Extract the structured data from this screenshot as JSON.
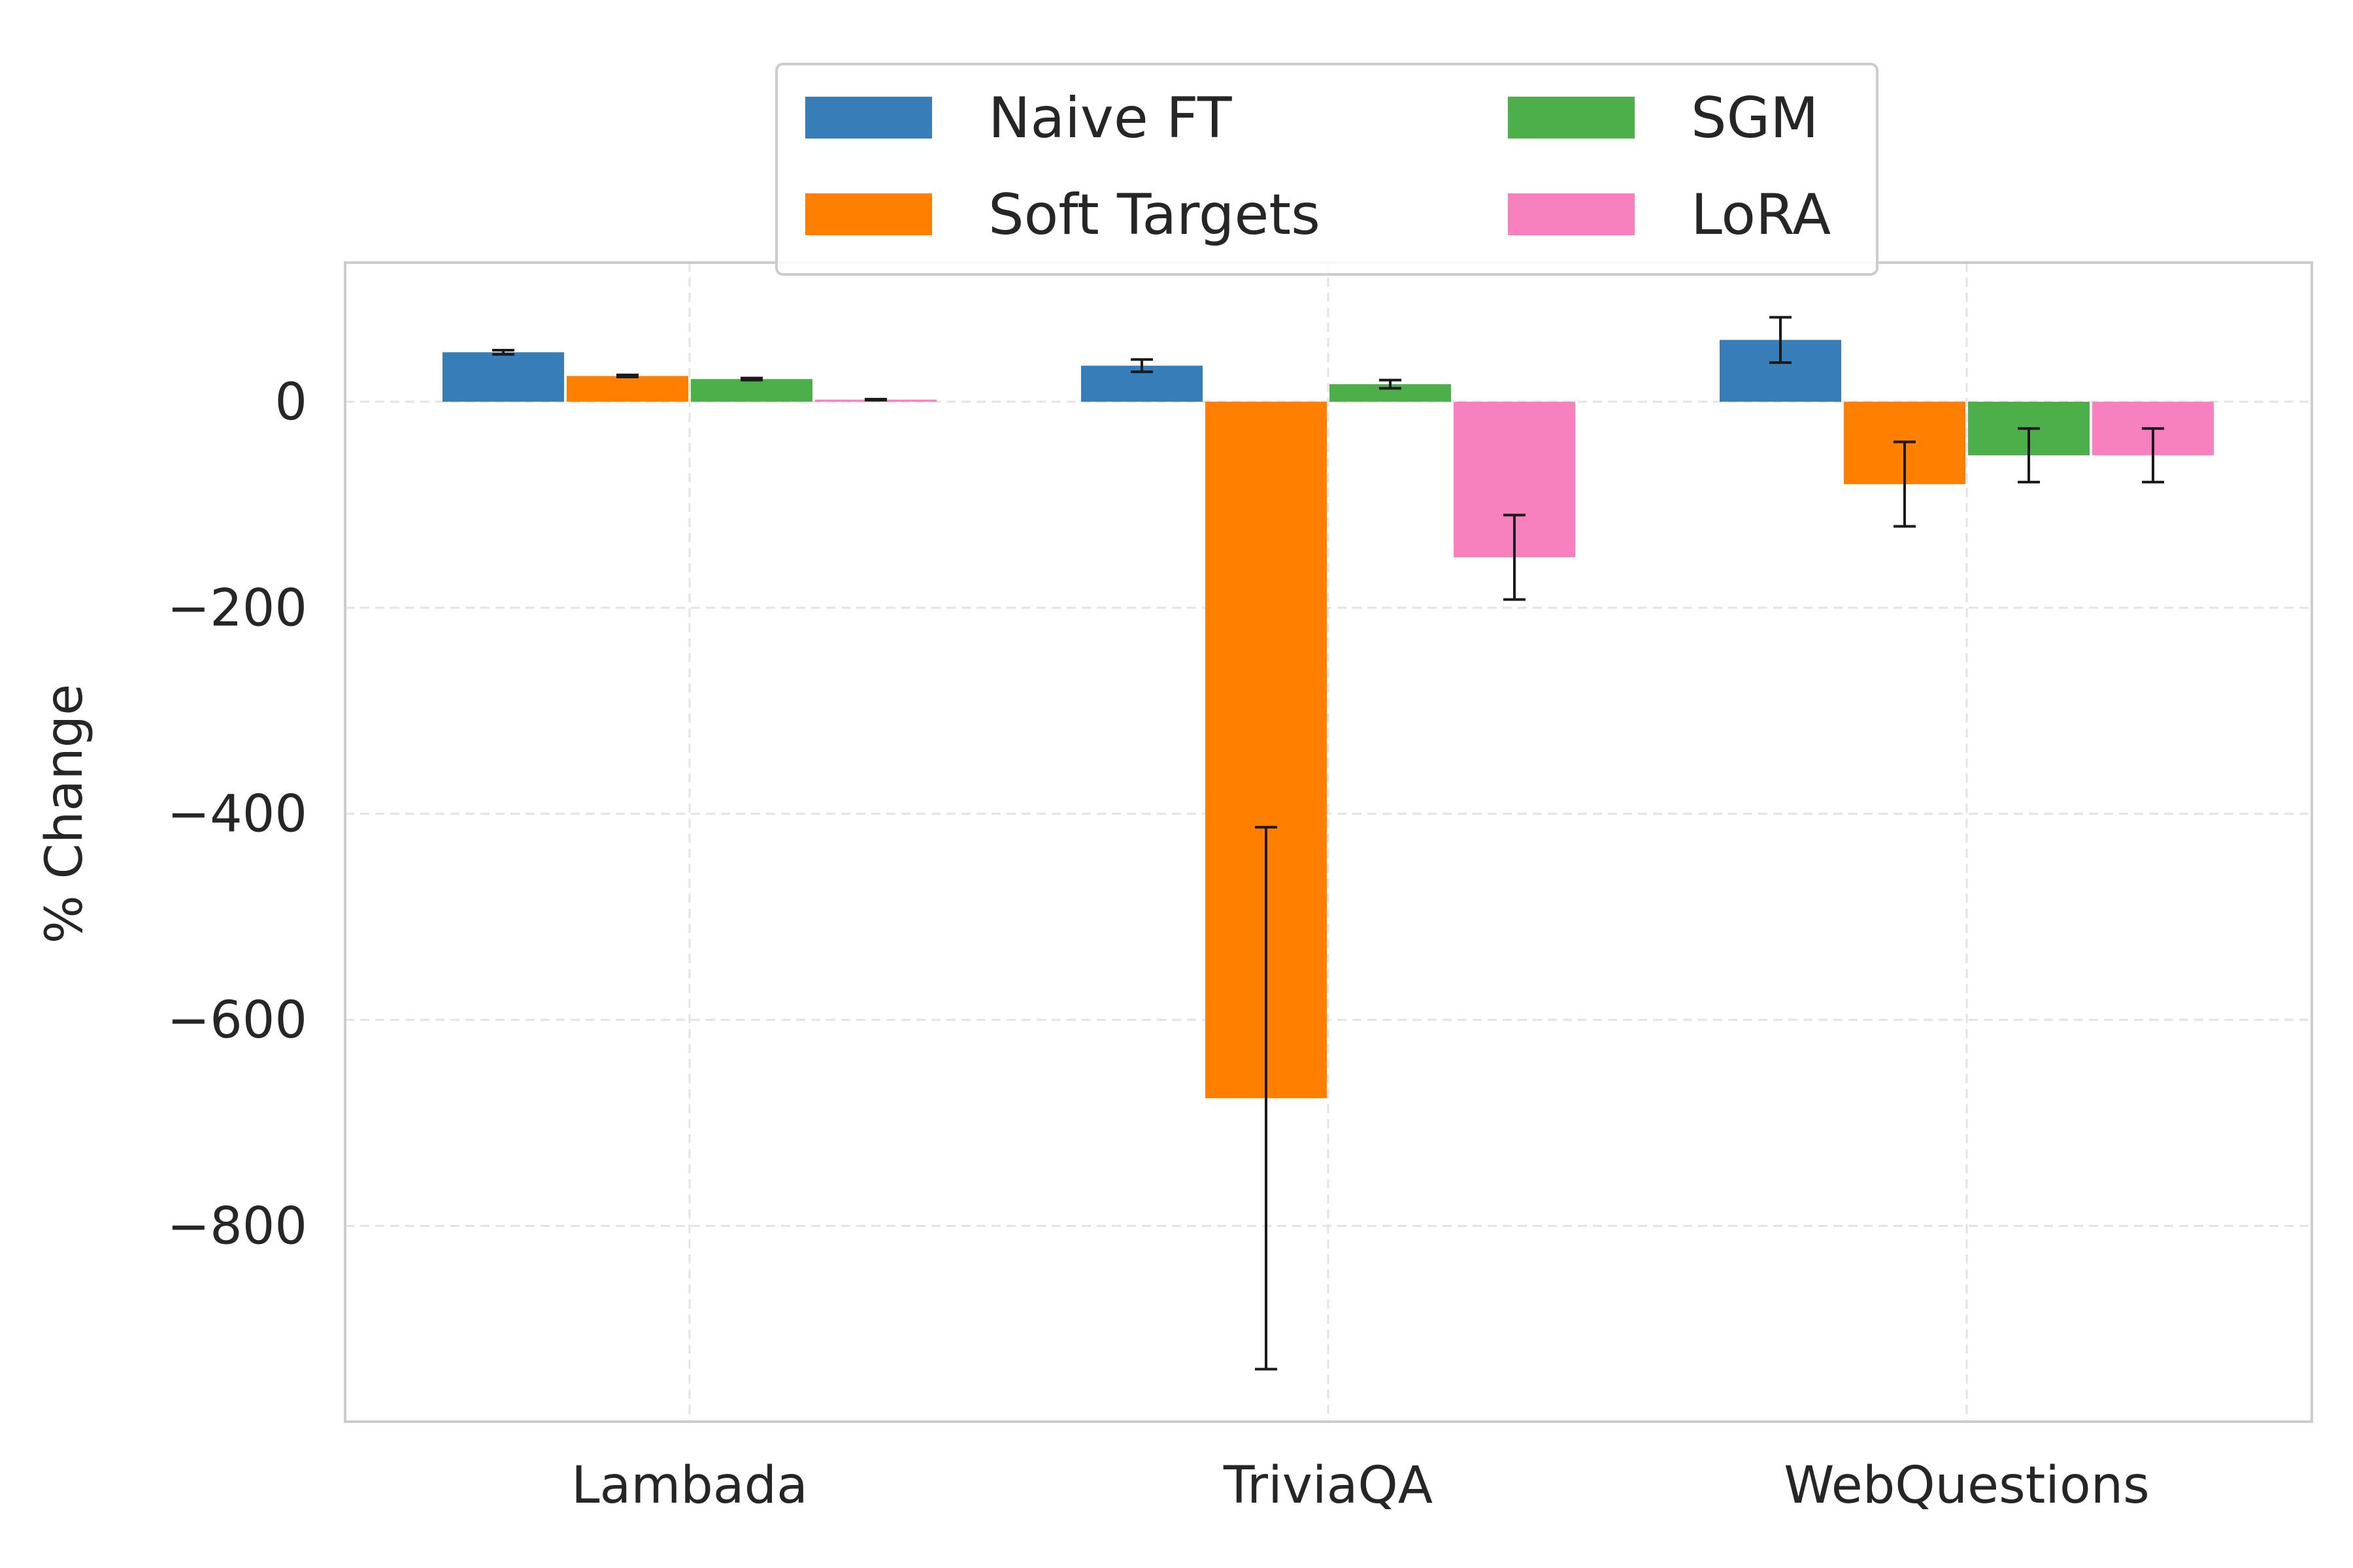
{
  "chart_data": {
    "type": "bar",
    "title": "",
    "xlabel": "",
    "ylabel": "% Change",
    "categories": [
      "Lambada",
      "TriviaQA",
      "WebQuestions"
    ],
    "ylim": [
      -990,
      135
    ],
    "yticks": [
      0,
      -200,
      -400,
      -600,
      -800
    ],
    "ytick_labels": [
      "0",
      "−200",
      "−400",
      "−600",
      "−800"
    ],
    "grid": true,
    "legend_position": "upper-center",
    "series": [
      {
        "name": "Naive FT",
        "color": "#377eb8",
        "values": [
          48,
          35,
          60
        ],
        "errors": [
          2,
          6,
          22
        ]
      },
      {
        "name": "Soft Targets",
        "color": "#ff7f00",
        "values": [
          25,
          -676,
          -80
        ],
        "errors": [
          1,
          263,
          41
        ]
      },
      {
        "name": "SGM",
        "color": "#4daf4a",
        "values": [
          22,
          17,
          -52
        ],
        "errors": [
          1,
          4,
          26
        ]
      },
      {
        "name": "LoRA",
        "color": "#f781bf",
        "values": [
          2,
          -151,
          -52
        ],
        "errors": [
          0.5,
          41,
          26
        ]
      }
    ]
  }
}
